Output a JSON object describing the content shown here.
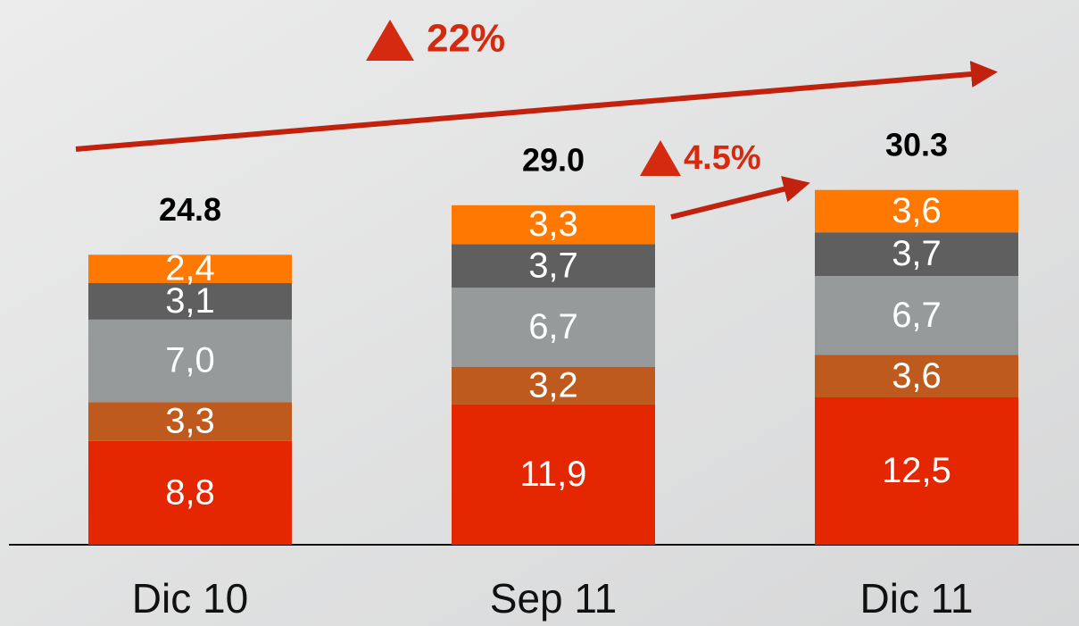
{
  "chart_data": {
    "type": "stacked_bar",
    "categories": [
      "Dic 10",
      "Sep 11",
      "Dic 11"
    ],
    "series": [
      {
        "color": "#e42700",
        "values": [
          8.8,
          11.9,
          12.5
        ],
        "value_labels": [
          "8,8",
          "11,9",
          "12,5"
        ]
      },
      {
        "color": "#bf5a1e",
        "values": [
          3.3,
          3.2,
          3.6
        ],
        "value_labels": [
          "3,3",
          "3,2",
          "3,6"
        ]
      },
      {
        "color": "#969a9b",
        "values": [
          7.0,
          6.7,
          6.7
        ],
        "value_labels": [
          "7,0",
          "6,7",
          "6,7"
        ]
      },
      {
        "color": "#5f5f5f",
        "values": [
          3.1,
          3.7,
          3.7
        ],
        "value_labels": [
          "3,1",
          "3,7",
          "3,7"
        ]
      },
      {
        "color": "#ff7800",
        "values": [
          2.4,
          3.3,
          3.6
        ],
        "value_labels": [
          "2,4",
          "3,3",
          "3,6"
        ]
      }
    ],
    "totals": [
      24.8,
      29.0,
      30.3
    ],
    "total_labels": [
      "24.8",
      "29.0",
      "30.3"
    ],
    "annotations": [
      {
        "text": "22%"
      },
      {
        "text": "4.5%"
      }
    ],
    "annotation_color": "#d42a10"
  }
}
